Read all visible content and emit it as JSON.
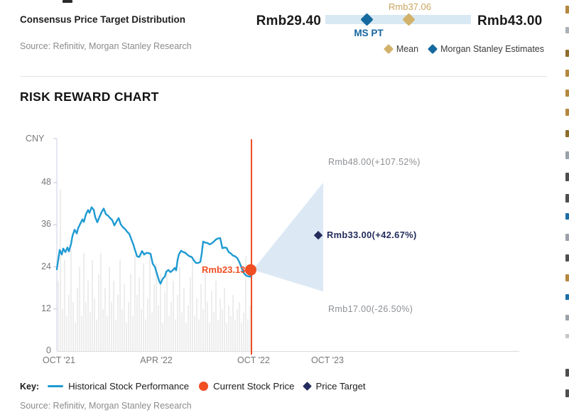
{
  "consensus": {
    "title": "Consensus Price Target Distribution",
    "source": "Source: Refinitiv, Morgan Stanley Research",
    "low_label": "Rmb29.40",
    "high_label": "Rmb43.00",
    "mean_value_label": "Rmb37.06",
    "ms_pt_label": "MS PT",
    "legend_mean": "Mean",
    "legend_ms": "Morgan Stanley Estimates"
  },
  "risk_reward": {
    "title": "RISK REWARD CHART",
    "y_axis_unit": "CNY",
    "y_ticks": [
      "48",
      "36",
      "24",
      "12",
      "0"
    ],
    "x_ticks": [
      "OCT '21",
      "APR '22",
      "OCT '22",
      "OCT '23"
    ],
    "bull_label": "Rmb48.00(+107.52%)",
    "target_label": "Rmb33.00(+42.67%)",
    "bear_label": "Rmb17.00(-26.50%)",
    "current_price_label": "Rmb23.13",
    "key_label": "Key:",
    "legend_historical": "Historical Stock Performance",
    "legend_current": "Current Stock Price",
    "legend_target": "Price Target",
    "source": "Source: Refinitiv, Morgan Stanley Research"
  },
  "colors": {
    "accent_blue_line": "#1e9ad2",
    "accent_orange": "#f04e23",
    "navy": "#232c5c",
    "ms_blue_diamond": "#16699e",
    "gold_diamond": "#d2b26a",
    "gold_text": "#c9a55f",
    "range_bar": "#d9e9f3",
    "fan_fill": "#dce9f5",
    "volume_gray": "#ededed",
    "tick_gray": "#77787c",
    "annotation_gray": "#8d9094"
  },
  "chart_data": [
    {
      "type": "other",
      "name": "consensus-price-target-distribution",
      "title": "Consensus Price Target Distribution",
      "currency": "Rmb",
      "range_low": 29.4,
      "range_high": 43.0,
      "mean": 37.06,
      "morgan_stanley_estimate": 33.0,
      "legend": [
        "Mean",
        "Morgan Stanley Estimates"
      ]
    },
    {
      "type": "line",
      "name": "risk-reward-chart",
      "title": "RISK REWARD CHART",
      "ylabel": "CNY",
      "ylim": [
        0,
        48
      ],
      "y_ticks": [
        0,
        12,
        24,
        36,
        48
      ],
      "x_tick_labels": [
        "OCT '21",
        "APR '22",
        "OCT '22",
        "OCT '23"
      ],
      "current_price": 23.13,
      "price_target": 33.0,
      "bull_case": 48.0,
      "bear_case": 17.0,
      "target_pct": "+42.67%",
      "bull_pct": "+107.52%",
      "bear_pct": "-26.50%",
      "legend": [
        "Historical Stock Performance",
        "Current Stock Price",
        "Price Target"
      ],
      "series": [
        {
          "name": "Historical Stock Performance",
          "note": "points are [screenshot_x_px, CNY]; x 80=OCT'21, 354=OCT'22 (values estimated from pixels)",
          "points": [
            [
              80,
              23.3
            ],
            [
              82,
              26.0
            ],
            [
              84,
              28.8
            ],
            [
              87,
              27.5
            ],
            [
              89,
              29.2
            ],
            [
              92,
              28.2
            ],
            [
              95,
              29.5
            ],
            [
              97,
              28.4
            ],
            [
              100,
              30.5
            ],
            [
              102,
              32.8
            ],
            [
              105,
              34.6
            ],
            [
              108,
              33.5
            ],
            [
              110,
              35.0
            ],
            [
              113,
              36.3
            ],
            [
              116,
              37.5
            ],
            [
              118,
              36.8
            ],
            [
              121,
              39.0
            ],
            [
              124,
              40.2
            ],
            [
              126,
              39.4
            ],
            [
              129,
              41.0
            ],
            [
              132,
              40.2
            ],
            [
              134,
              38.2
            ],
            [
              137,
              36.7
            ],
            [
              140,
              38.2
            ],
            [
              143,
              39.6
            ],
            [
              146,
              40.6
            ],
            [
              149,
              39.0
            ],
            [
              152,
              38.6
            ],
            [
              155,
              37.9
            ],
            [
              158,
              37.3
            ],
            [
              161,
              35.8
            ],
            [
              164,
              36.9
            ],
            [
              167,
              37.9
            ],
            [
              170,
              36.1
            ],
            [
              173,
              35.3
            ],
            [
              176,
              34.8
            ],
            [
              179,
              34.0
            ],
            [
              182,
              33.4
            ],
            [
              185,
              31.8
            ],
            [
              188,
              30.2
            ],
            [
              190,
              28.8
            ],
            [
              193,
              27.0
            ],
            [
              196,
              26.8
            ],
            [
              200,
              28.5
            ],
            [
              203,
              27.5
            ],
            [
              206,
              28.0
            ],
            [
              209,
              27.9
            ],
            [
              212,
              27.7
            ],
            [
              215,
              24.9
            ],
            [
              218,
              24.0
            ],
            [
              221,
              22.0
            ],
            [
              224,
              20.0
            ],
            [
              226,
              19.2
            ],
            [
              229,
              20.6
            ],
            [
              232,
              21.2
            ],
            [
              234,
              22.6
            ],
            [
              237,
              23.1
            ],
            [
              240,
              22.5
            ],
            [
              243,
              23.0
            ],
            [
              246,
              23.7
            ],
            [
              248,
              23.0
            ],
            [
              250,
              26.0
            ],
            [
              252,
              27.6
            ],
            [
              255,
              28.6
            ],
            [
              258,
              28.2
            ],
            [
              261,
              28.0
            ],
            [
              264,
              27.4
            ],
            [
              267,
              27.0
            ],
            [
              270,
              26.8
            ],
            [
              273,
              25.8
            ],
            [
              276,
              25.1
            ],
            [
              279,
              25.1
            ],
            [
              282,
              25.4
            ],
            [
              284,
              27.8
            ],
            [
              286,
              31.2
            ],
            [
              289,
              30.9
            ],
            [
              292,
              30.8
            ],
            [
              295,
              30.4
            ],
            [
              298,
              30.7
            ],
            [
              301,
              31.2
            ],
            [
              304,
              31.8
            ],
            [
              307,
              32.1
            ],
            [
              310,
              32.2
            ],
            [
              313,
              29.3
            ],
            [
              316,
              29.5
            ],
            [
              319,
              29.4
            ],
            [
              322,
              28.2
            ],
            [
              325,
              27.8
            ],
            [
              328,
              27.2
            ],
            [
              331,
              27.0
            ],
            [
              334,
              26.5
            ],
            [
              337,
              25.3
            ],
            [
              340,
              23.8
            ],
            [
              343,
              22.3
            ],
            [
              346,
              21.6
            ],
            [
              349,
              21.3
            ],
            [
              352,
              21.2
            ],
            [
              354,
              22.3
            ],
            [
              356,
              23.13
            ]
          ]
        }
      ],
      "volume_bars_cny": [
        20,
        46,
        12,
        26,
        10,
        16,
        29,
        14,
        8,
        18,
        24,
        10,
        28,
        14,
        20,
        11,
        26,
        15,
        9,
        22,
        28,
        12,
        18,
        10,
        24,
        14,
        20,
        9,
        16,
        26,
        12,
        19,
        8,
        14,
        22,
        10,
        27,
        16,
        21,
        12,
        25,
        9,
        15,
        27,
        11,
        19,
        25,
        13,
        22,
        8,
        17,
        23,
        10,
        14,
        20,
        9,
        16,
        24,
        11,
        18,
        8,
        13,
        21,
        26,
        10,
        15,
        9,
        19,
        12,
        23,
        14,
        8,
        17,
        11,
        20,
        9,
        15,
        12,
        18,
        8,
        13,
        10,
        16,
        9,
        12,
        14,
        8,
        11,
        27,
        9,
        13
      ]
    }
  ]
}
